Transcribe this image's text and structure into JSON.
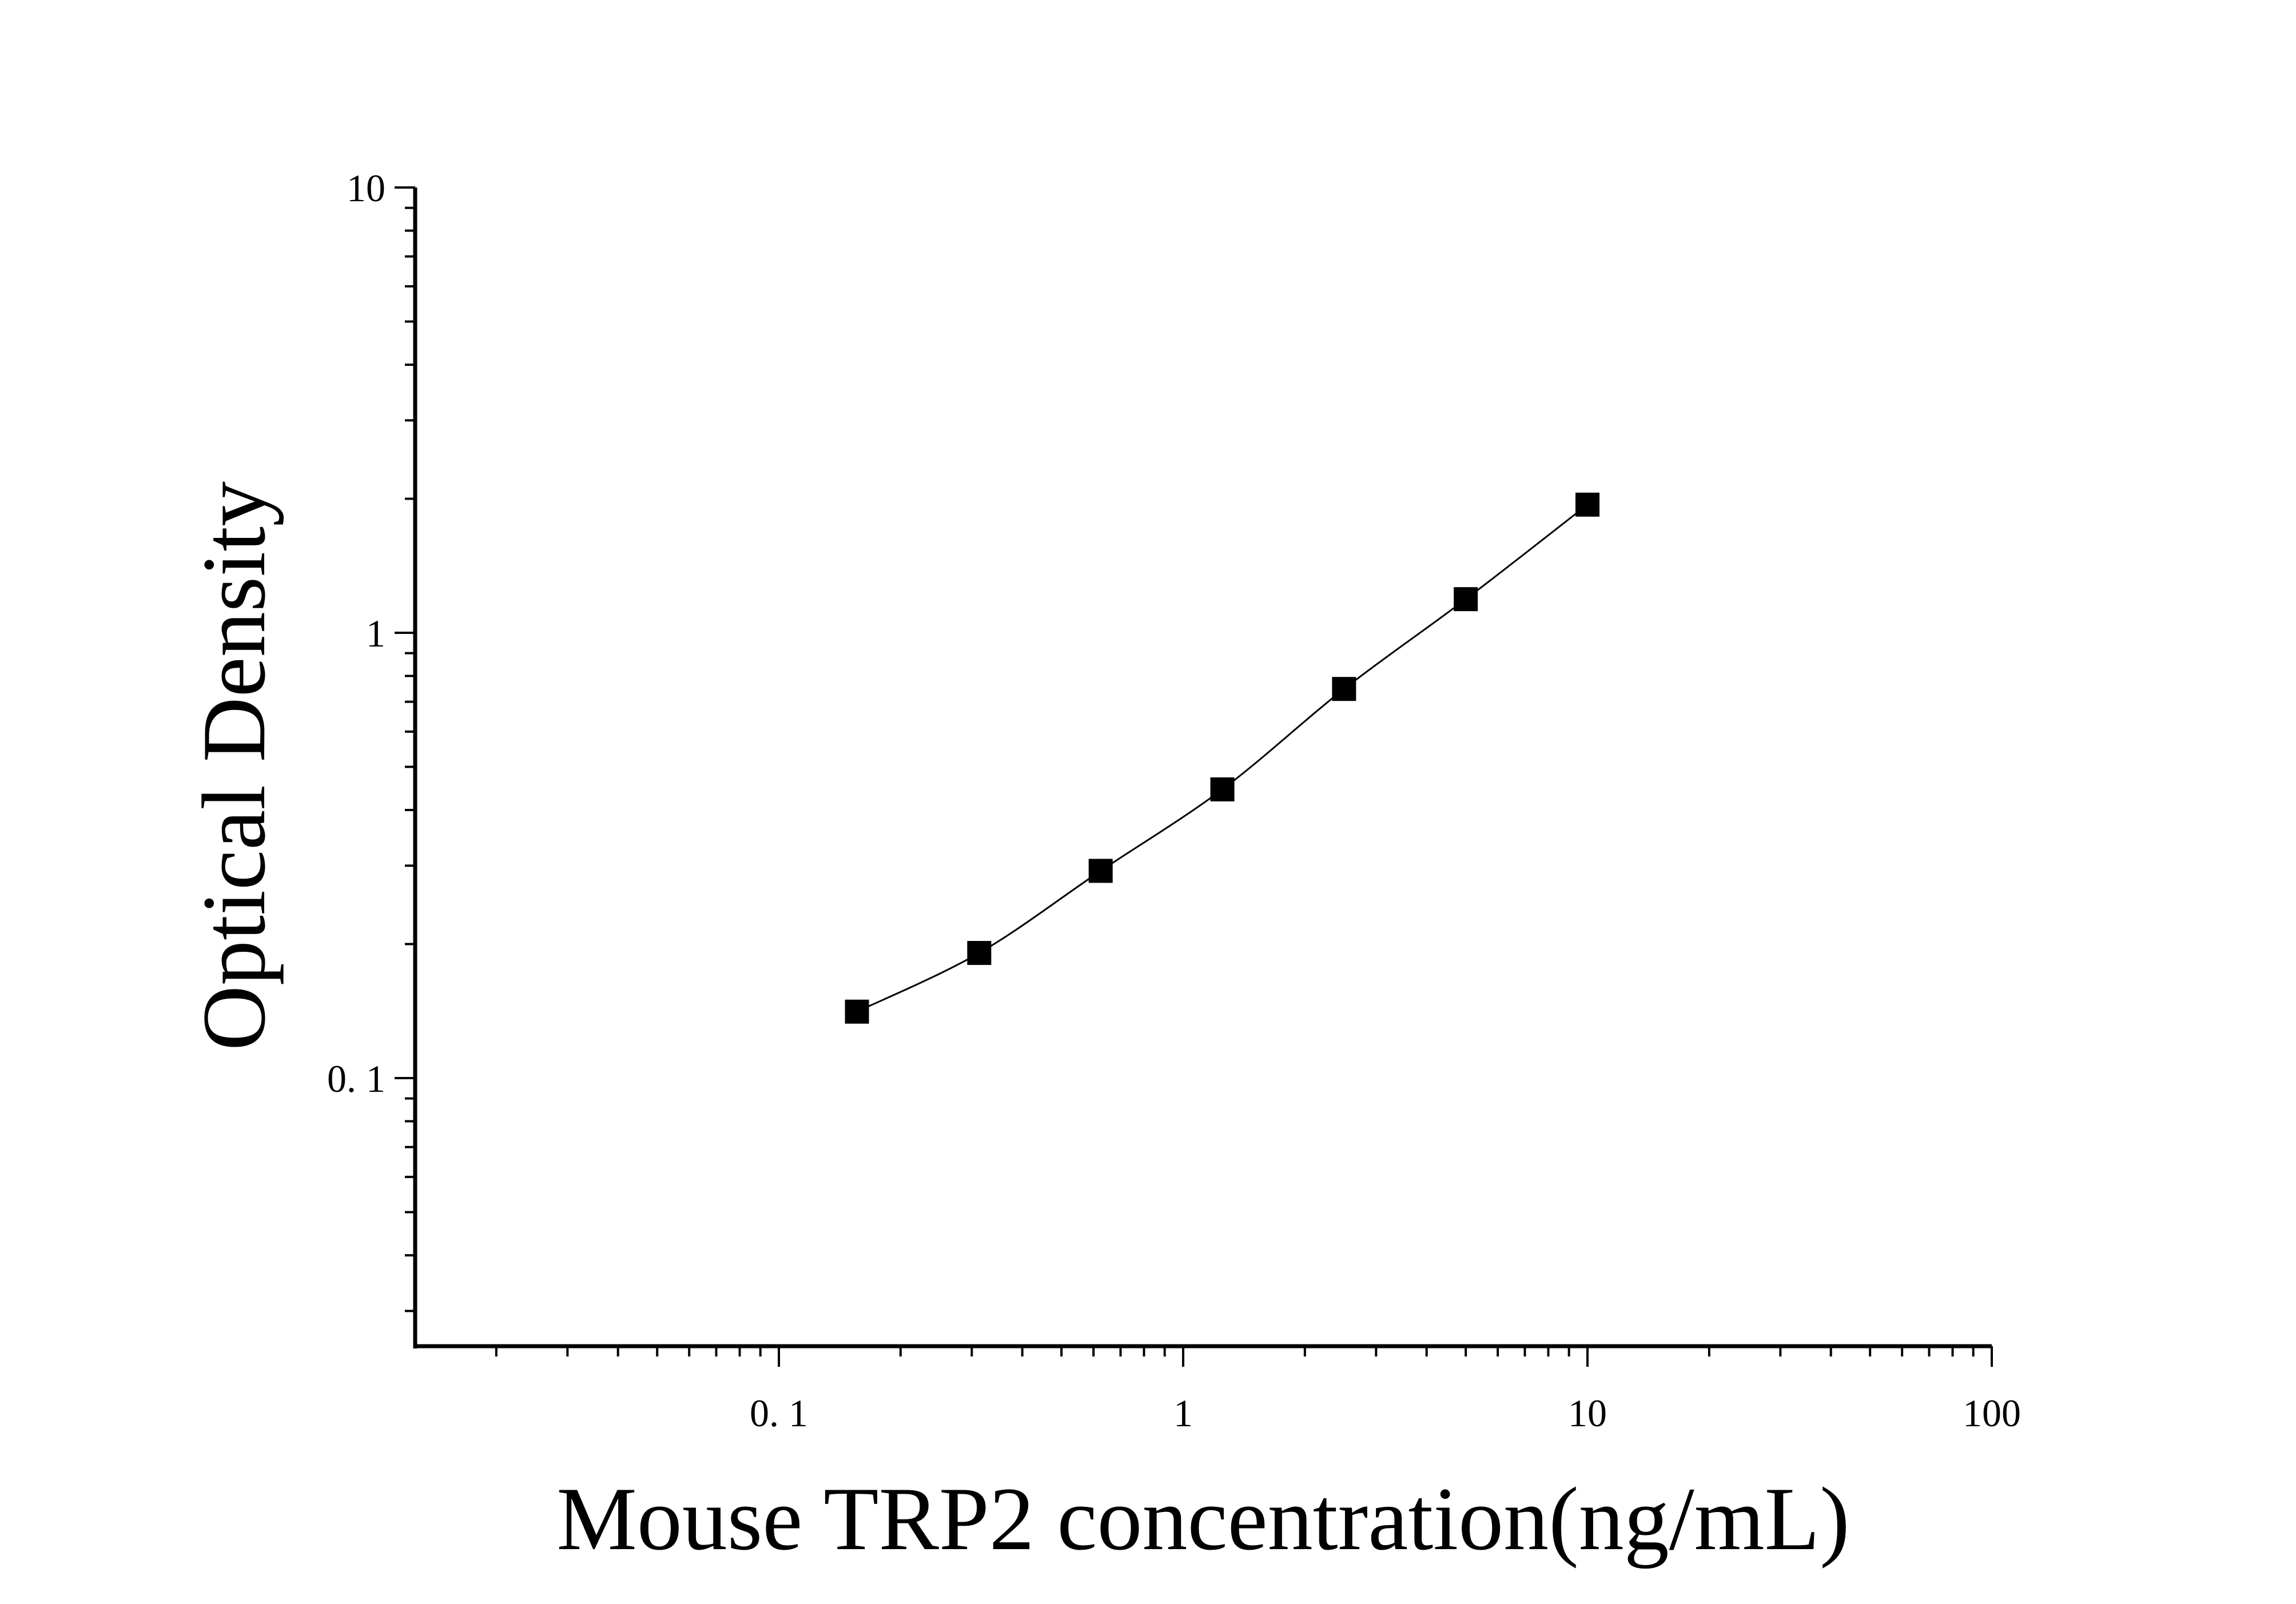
{
  "chart_data": {
    "type": "line",
    "title": "",
    "xlabel": "Mouse TRP2 concentration(ng/mL)",
    "ylabel": "Optical Density",
    "x_scale": "log",
    "y_scale": "log",
    "xlim": [
      0.0126,
      100
    ],
    "ylim": [
      0.025,
      10
    ],
    "x_ticks": [
      0.1,
      1,
      10,
      100
    ],
    "x_tick_labels": [
      "0. 1",
      "1",
      "10",
      "100"
    ],
    "y_ticks": [
      0.1,
      1,
      10
    ],
    "y_tick_labels": [
      "0. 1",
      "1",
      "10"
    ],
    "grid": false,
    "legend": "none",
    "marker": "square",
    "color": "#000000",
    "series": [
      {
        "x": [
          0.156,
          0.313,
          0.625,
          1.25,
          2.5,
          5,
          10
        ],
        "y": [
          0.141,
          0.191,
          0.292,
          0.445,
          0.748,
          1.19,
          1.94
        ]
      }
    ]
  }
}
